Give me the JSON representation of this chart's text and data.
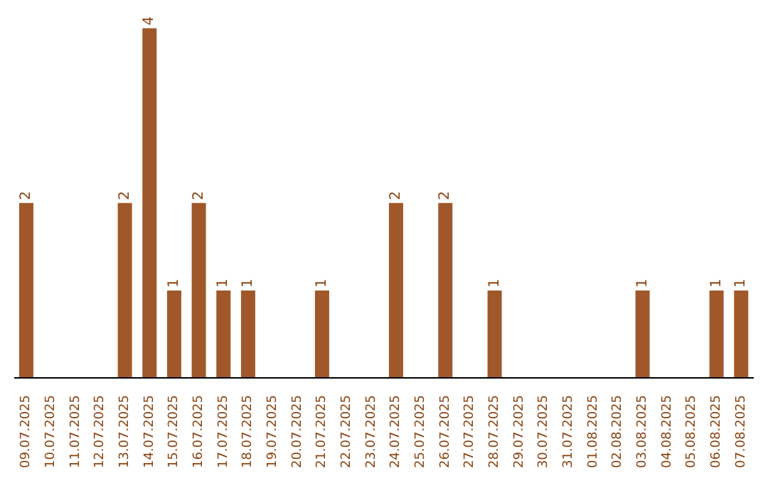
{
  "chart_data": {
    "type": "bar",
    "categories": [
      "09.07.2025",
      "10.07.2025",
      "11.07.2025",
      "12.07.2025",
      "13.07.2025",
      "14.07.2025",
      "15.07.2025",
      "16.07.2025",
      "17.07.2025",
      "18.07.2025",
      "19.07.2025",
      "20.07.2025",
      "21.07.2025",
      "22.07.2025",
      "23.07.2025",
      "24.07.2025",
      "25.07.2025",
      "26.07.2025",
      "27.07.2025",
      "28.07.2025",
      "29.07.2025",
      "30.07.2025",
      "31.07.2025",
      "01.08.2025",
      "02.08.2025",
      "03.08.2025",
      "04.08.2025",
      "05.08.2025",
      "06.08.2025",
      "07.08.2025"
    ],
    "values": [
      2,
      0,
      0,
      0,
      2,
      4,
      1,
      2,
      1,
      1,
      0,
      0,
      1,
      0,
      0,
      2,
      0,
      2,
      0,
      1,
      0,
      0,
      0,
      0,
      0,
      1,
      0,
      0,
      1,
      1
    ],
    "value_labels": [
      "2",
      null,
      null,
      null,
      "2",
      "4",
      "1",
      "2",
      "1",
      "1",
      null,
      null,
      "1",
      null,
      null,
      "2",
      null,
      "2",
      null,
      "1",
      null,
      null,
      null,
      null,
      null,
      "1",
      null,
      null,
      "1",
      "1"
    ],
    "color": "#a0582a",
    "tick_labels": "x",
    "grid": false,
    "legend": false
  }
}
